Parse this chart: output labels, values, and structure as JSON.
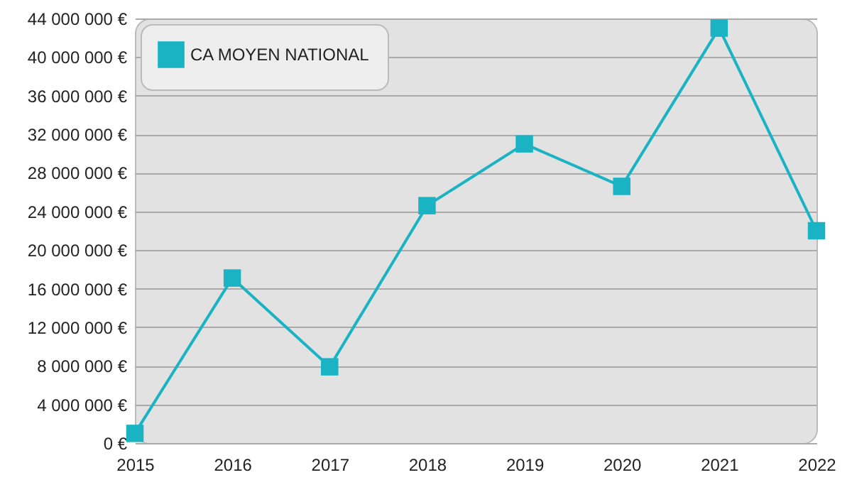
{
  "chart_data": {
    "type": "line",
    "categories": [
      "2015",
      "2016",
      "2017",
      "2018",
      "2019",
      "2020",
      "2021",
      "2022"
    ],
    "series": [
      {
        "name": "CA MOYEN NATIONAL",
        "color": "#1ab3c3",
        "values": [
          1000000,
          17100000,
          7900000,
          24600000,
          31000000,
          26600000,
          43000000,
          22000000
        ]
      }
    ],
    "ylim": [
      0,
      44000000
    ],
    "yticks": [
      {
        "value": 0,
        "label": "0 €"
      },
      {
        "value": 4000000,
        "label": "4 000 000 €"
      },
      {
        "value": 8000000,
        "label": "8 000 000 €"
      },
      {
        "value": 12000000,
        "label": "12 000 000 €"
      },
      {
        "value": 16000000,
        "label": "16 000 000 €"
      },
      {
        "value": 20000000,
        "label": "20 000 000 €"
      },
      {
        "value": 24000000,
        "label": "24 000 000 €"
      },
      {
        "value": 28000000,
        "label": "28 000 000 €"
      },
      {
        "value": 32000000,
        "label": "32 000 000 €"
      },
      {
        "value": 36000000,
        "label": "36 000 000 €"
      },
      {
        "value": 40000000,
        "label": "40 000 000 €"
      },
      {
        "value": 44000000,
        "label": "44 000 000 €"
      }
    ],
    "grid": "y",
    "legend": "top left",
    "marker": "square",
    "line_style": "solid"
  }
}
